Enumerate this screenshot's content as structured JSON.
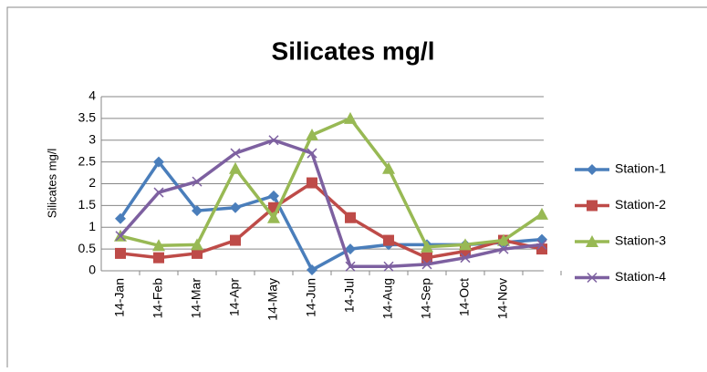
{
  "chart_data": {
    "type": "line",
    "title": "Silicates mg/l",
    "y_label": "Silicates mg/l",
    "categories": [
      "14-Jan",
      "14-Feb",
      "14-Mar",
      "14-Apr",
      "14-May",
      "14-Jun",
      "14-Jul",
      "14-Aug",
      "14-Sep",
      "14-Oct",
      "14-Nov",
      null
    ],
    "series": [
      {
        "name": "Station-1",
        "color": "#4a7ebb",
        "marker": "diamond",
        "values": [
          1.2,
          2.5,
          1.38,
          1.45,
          1.72,
          0.02,
          0.5,
          0.6,
          0.6,
          0.6,
          0.65,
          0.72
        ]
      },
      {
        "name": "Station-2",
        "color": "#be4b48",
        "marker": "square",
        "values": [
          0.4,
          0.3,
          0.4,
          0.7,
          1.45,
          2.02,
          1.22,
          0.7,
          0.3,
          0.45,
          0.7,
          0.5
        ]
      },
      {
        "name": "Station-3",
        "color": "#98b954",
        "marker": "triangle",
        "values": [
          0.8,
          0.58,
          0.6,
          2.35,
          1.22,
          3.12,
          3.5,
          2.35,
          0.55,
          0.6,
          0.7,
          1.3
        ]
      },
      {
        "name": "Station-4",
        "color": "#7d60a0",
        "marker": "x",
        "values": [
          0.8,
          1.8,
          2.05,
          2.7,
          3.0,
          2.7,
          0.1,
          0.1,
          0.15,
          0.3,
          0.5,
          0.6
        ]
      }
    ],
    "ylim": [
      0,
      4
    ],
    "yticks": [
      0,
      0.5,
      1,
      1.5,
      2,
      2.5,
      3,
      3.5,
      4
    ],
    "grid": true,
    "legend": "right"
  }
}
